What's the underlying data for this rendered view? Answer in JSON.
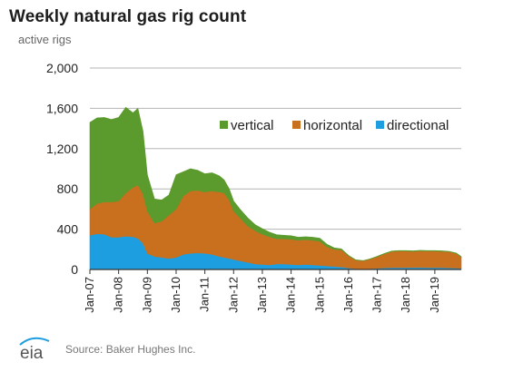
{
  "chart_data": {
    "type": "area",
    "stacked": true,
    "title": "Weekly natural gas rig count",
    "ylabel": "active rigs",
    "xlabel": "",
    "ylim": [
      0,
      2000
    ],
    "yticks": [
      0,
      400,
      800,
      1200,
      1600,
      2000
    ],
    "ytick_labels": [
      "0",
      "400",
      "800",
      "1,200",
      "1,600",
      "2,000"
    ],
    "xlim": [
      2007.0,
      2019.92
    ],
    "xticks": [
      2007,
      2008,
      2009,
      2010,
      2011,
      2012,
      2013,
      2014,
      2015,
      2016,
      2017,
      2018,
      2019
    ],
    "xtick_labels": [
      "Jan-07",
      "Jan-08",
      "Jan-09",
      "Jan-10",
      "Jan-11",
      "Jan-12",
      "Jan-13",
      "Jan-14",
      "Jan-15",
      "Jan-16",
      "Jan-17",
      "Jan-18",
      "Jan-19"
    ],
    "grid": true,
    "legend_position": "top-right",
    "x": [
      2007.0,
      2007.25,
      2007.5,
      2007.75,
      2008.0,
      2008.25,
      2008.5,
      2008.67,
      2008.85,
      2009.0,
      2009.25,
      2009.5,
      2009.75,
      2010.0,
      2010.25,
      2010.5,
      2010.75,
      2011.0,
      2011.25,
      2011.5,
      2011.67,
      2011.85,
      2012.0,
      2012.25,
      2012.5,
      2012.75,
      2013.0,
      2013.25,
      2013.5,
      2013.75,
      2014.0,
      2014.25,
      2014.5,
      2014.75,
      2015.0,
      2015.25,
      2015.5,
      2015.75,
      2016.0,
      2016.25,
      2016.5,
      2016.75,
      2017.0,
      2017.25,
      2017.5,
      2017.75,
      2018.0,
      2018.25,
      2018.5,
      2018.75,
      2019.0,
      2019.25,
      2019.5,
      2019.75,
      2019.92
    ],
    "series": [
      {
        "name": "directional",
        "color": "#1d9ee0",
        "values": [
          340,
          355,
          350,
          320,
          320,
          330,
          325,
          310,
          260,
          160,
          130,
          120,
          110,
          120,
          150,
          160,
          165,
          160,
          150,
          130,
          120,
          110,
          100,
          85,
          70,
          55,
          50,
          45,
          55,
          55,
          50,
          45,
          50,
          45,
          40,
          35,
          30,
          25,
          15,
          8,
          6,
          8,
          12,
          16,
          18,
          18,
          18,
          20,
          20,
          18,
          18,
          18,
          16,
          14,
          10
        ]
      },
      {
        "name": "horizontal",
        "color": "#c8701e",
        "values": [
          260,
          300,
          320,
          350,
          360,
          430,
          490,
          530,
          490,
          420,
          330,
          360,
          430,
          480,
          580,
          620,
          620,
          610,
          630,
          640,
          640,
          580,
          480,
          420,
          360,
          330,
          300,
          280,
          250,
          250,
          250,
          245,
          245,
          245,
          240,
          190,
          170,
          170,
          120,
          85,
          80,
          95,
          115,
          140,
          160,
          165,
          165,
          160,
          165,
          165,
          165,
          162,
          160,
          145,
          115
        ]
      },
      {
        "name": "vertical",
        "color": "#5b9a2d",
        "values": [
          860,
          850,
          840,
          820,
          830,
          850,
          740,
          760,
          620,
          360,
          240,
          210,
          200,
          340,
          240,
          220,
          200,
          180,
          180,
          160,
          130,
          110,
          100,
          85,
          80,
          60,
          55,
          45,
          40,
          35,
          35,
          30,
          30,
          30,
          30,
          25,
          15,
          10,
          5,
          3,
          2,
          3,
          4,
          4,
          5,
          5,
          5,
          5,
          5,
          5,
          5,
          5,
          4,
          4,
          3
        ]
      }
    ]
  },
  "footer": {
    "logo_text": "eia",
    "source": "Source: Baker Hughes Inc."
  }
}
